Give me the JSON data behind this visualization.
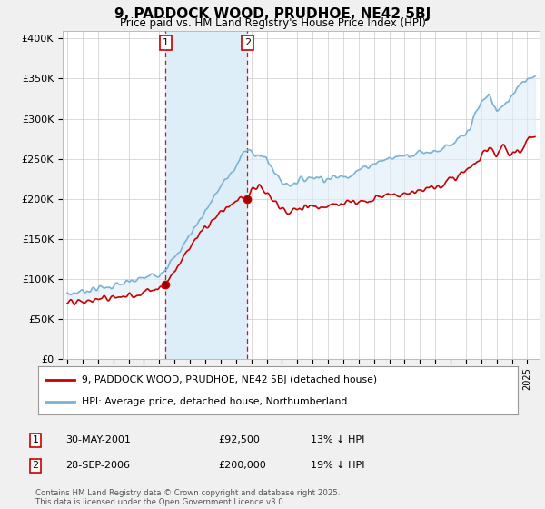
{
  "title": "9, PADDOCK WOOD, PRUDHOE, NE42 5BJ",
  "subtitle": "Price paid vs. HM Land Registry's House Price Index (HPI)",
  "ylim": [
    0,
    410000
  ],
  "yticks": [
    0,
    50000,
    100000,
    150000,
    200000,
    250000,
    300000,
    350000,
    400000
  ],
  "ytick_labels": [
    "£0",
    "£50K",
    "£100K",
    "£150K",
    "£200K",
    "£250K",
    "£300K",
    "£350K",
    "£400K"
  ],
  "sale1_date": 2001.42,
  "sale1_price": 92500,
  "sale2_date": 2006.75,
  "sale2_price": 200000,
  "red_color": "#cc0000",
  "blue_color": "#7ab3d4",
  "shade_color": "#ddeef8",
  "vline_color": "#cc0000",
  "legend_label_red": "9, PADDOCK WOOD, PRUDHOE, NE42 5BJ (detached house)",
  "legend_label_blue": "HPI: Average price, detached house, Northumberland",
  "footer": "Contains HM Land Registry data © Crown copyright and database right 2025.\nThis data is licensed under the Open Government Licence v3.0.",
  "bg_color": "#f0f0f0",
  "plot_bg": "#ffffff"
}
